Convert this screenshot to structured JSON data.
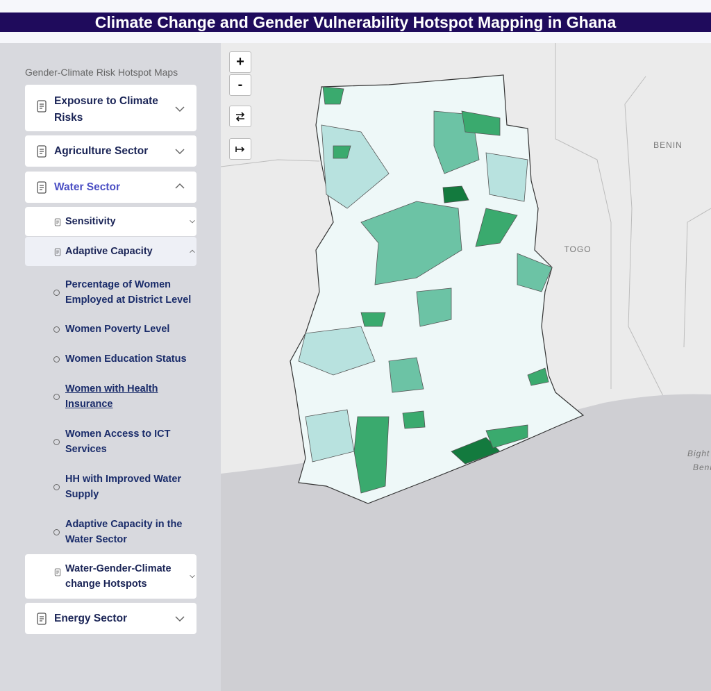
{
  "header": {
    "title": "Climate Change and Gender Vulnerability Hotspot Mapping in Ghana"
  },
  "sidebar": {
    "heading": "Gender-Climate Risk Hotspot Maps",
    "sections": [
      {
        "label": "Exposure to Climate Risks"
      },
      {
        "label": "Agriculture Sector"
      },
      {
        "label": "Water Sector",
        "items": [
          {
            "label": "Sensitivity"
          },
          {
            "label": "Adaptive Capacity",
            "layers": [
              "Percentage of Women Employed at District Level",
              "Women Poverty Level",
              "Women Education Status",
              "Women with Health Insurance",
              "Women Access to ICT Services",
              "HH with Improved Water Supply",
              "Adaptive Capacity in the Water Sector"
            ]
          },
          {
            "label": "Water-Gender-Climate change Hotspots"
          }
        ]
      },
      {
        "label": "Energy Sector"
      }
    ]
  },
  "map": {
    "zoom_in": "+",
    "zoom_out": "-",
    "labels": [
      "BENIN",
      "TOGO",
      "Bight",
      "Beni"
    ]
  }
}
